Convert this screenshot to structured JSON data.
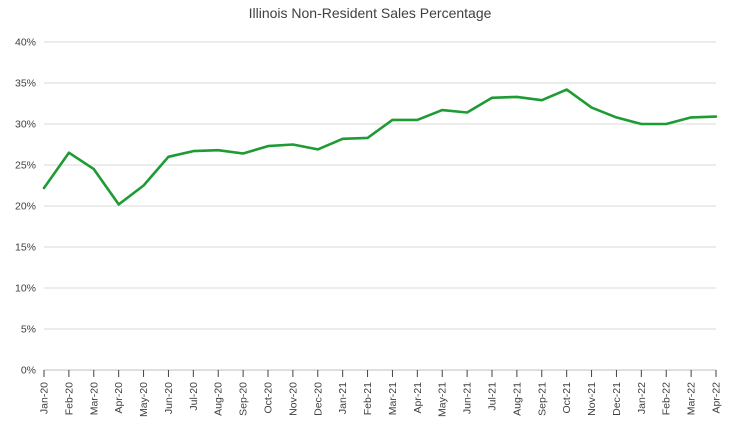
{
  "chart_data": {
    "type": "line",
    "title": "Illinois Non-Resident Sales Percentage",
    "categories": [
      "Jan-20",
      "Feb-20",
      "Mar-20",
      "Apr-20",
      "May-20",
      "Jun-20",
      "Jul-20",
      "Aug-20",
      "Sep-20",
      "Oct-20",
      "Nov-20",
      "Dec-20",
      "Jan-21",
      "Feb-21",
      "Mar-21",
      "Apr-21",
      "May-21",
      "Jun-21",
      "Jul-21",
      "Aug-21",
      "Sep-21",
      "Oct-21",
      "Nov-21",
      "Dec-21",
      "Jan-22",
      "Feb-22",
      "Mar-22",
      "Apr-22"
    ],
    "values": [
      22.2,
      26.5,
      24.5,
      20.2,
      22.5,
      26.0,
      26.7,
      26.8,
      26.4,
      27.3,
      27.5,
      26.9,
      28.2,
      28.3,
      30.5,
      30.5,
      31.7,
      31.4,
      33.2,
      33.3,
      32.9,
      34.2,
      32.0,
      30.8,
      30.0,
      30.0,
      30.8,
      30.9
    ],
    "xlabel": "",
    "ylabel": "",
    "ylim": [
      0,
      40
    ],
    "y_tick_step": 5,
    "y_tick_suffix": "%",
    "grid": "horizontal",
    "legend": "none",
    "colors": {
      "line": "#1e9b32",
      "gridline": "#d9d9d9",
      "axis_line": "#bfbfbf",
      "tick_mark": "#404040",
      "text": "#404040",
      "background": "#ffffff"
    }
  }
}
